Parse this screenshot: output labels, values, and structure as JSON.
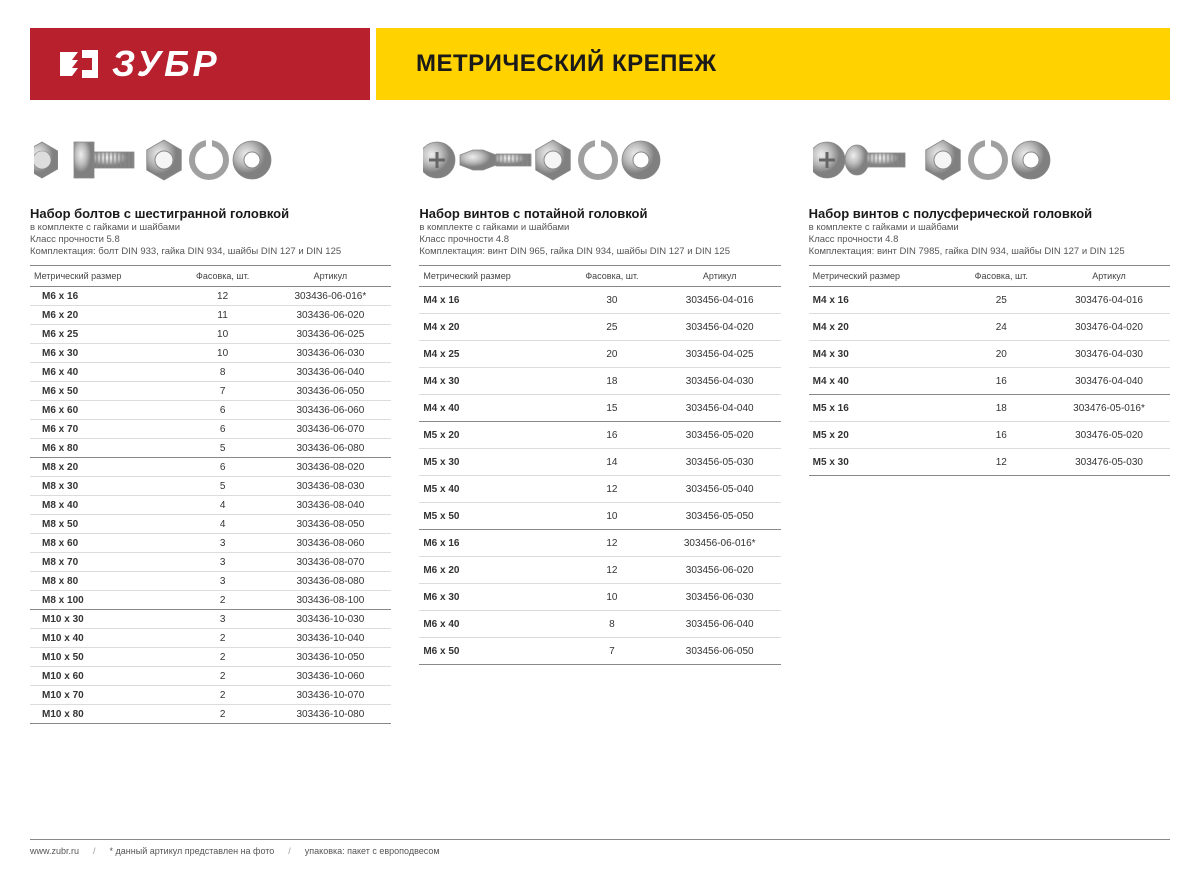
{
  "colors": {
    "brand_red": "#b7202c",
    "accent_yellow": "#ffd200",
    "text_dark": "#1a1a1a",
    "text_body": "#333333",
    "rule_strong": "#888888",
    "rule_light": "#dcdcdc",
    "background": "#ffffff"
  },
  "header": {
    "brand": "ЗУБР",
    "title": "МЕТРИЧЕСКИЙ КРЕПЕЖ"
  },
  "table_headers": {
    "size": "Метрический размер",
    "qty": "Фасовка, шт.",
    "sku": "Артикул"
  },
  "sections": [
    {
      "title": "Набор болтов с шестигранной головкой",
      "subtitle": "в комплекте с гайками и шайбами",
      "strength": "Класс прочности 5.8",
      "composition": "Комплектация: болт DIN 933, гайка DIN 934, шайбы DIN 127 и DIN 125",
      "hardware": "hex",
      "table_class": "table-1",
      "groups": [
        [
          {
            "size": "M6 x 16",
            "qty": "12",
            "sku": "303436-06-016*"
          },
          {
            "size": "M6 x 20",
            "qty": "11",
            "sku": "303436-06-020"
          },
          {
            "size": "M6 x 25",
            "qty": "10",
            "sku": "303436-06-025"
          },
          {
            "size": "M6 x 30",
            "qty": "10",
            "sku": "303436-06-030"
          },
          {
            "size": "M6 x 40",
            "qty": "8",
            "sku": "303436-06-040"
          },
          {
            "size": "M6 x 50",
            "qty": "7",
            "sku": "303436-06-050"
          },
          {
            "size": "M6 x 60",
            "qty": "6",
            "sku": "303436-06-060"
          },
          {
            "size": "M6 x 70",
            "qty": "6",
            "sku": "303436-06-070"
          },
          {
            "size": "M6 x 80",
            "qty": "5",
            "sku": "303436-06-080"
          }
        ],
        [
          {
            "size": "M8 x 20",
            "qty": "6",
            "sku": "303436-08-020"
          },
          {
            "size": "M8 x 30",
            "qty": "5",
            "sku": "303436-08-030"
          },
          {
            "size": "M8 x 40",
            "qty": "4",
            "sku": "303436-08-040"
          },
          {
            "size": "M8 x 50",
            "qty": "4",
            "sku": "303436-08-050"
          },
          {
            "size": "M8 x 60",
            "qty": "3",
            "sku": "303436-08-060"
          },
          {
            "size": "M8 x 70",
            "qty": "3",
            "sku": "303436-08-070"
          },
          {
            "size": "M8 x 80",
            "qty": "3",
            "sku": "303436-08-080"
          },
          {
            "size": "M8 x 100",
            "qty": "2",
            "sku": "303436-08-100"
          }
        ],
        [
          {
            "size": "M10 x 30",
            "qty": "3",
            "sku": "303436-10-030"
          },
          {
            "size": "M10 x 40",
            "qty": "2",
            "sku": "303436-10-040"
          },
          {
            "size": "M10 x 50",
            "qty": "2",
            "sku": "303436-10-050"
          },
          {
            "size": "M10 x 60",
            "qty": "2",
            "sku": "303436-10-060"
          },
          {
            "size": "M10 x 70",
            "qty": "2",
            "sku": "303436-10-070"
          },
          {
            "size": "M10 x 80",
            "qty": "2",
            "sku": "303436-10-080"
          }
        ]
      ]
    },
    {
      "title": "Набор винтов с потайной головкой",
      "subtitle": "в комплекте с гайками и шайбами",
      "strength": "Класс прочности 4.8",
      "composition": "Комплектация: винт DIN 965, гайка DIN 934, шайбы DIN 127 и DIN 125",
      "hardware": "flat",
      "table_class": "table-2",
      "groups": [
        [
          {
            "size": "M4 x 16",
            "qty": "30",
            "sku": "303456-04-016"
          },
          {
            "size": "M4 x 20",
            "qty": "25",
            "sku": "303456-04-020"
          },
          {
            "size": "M4 x 25",
            "qty": "20",
            "sku": "303456-04-025"
          },
          {
            "size": "M4 x 30",
            "qty": "18",
            "sku": "303456-04-030"
          },
          {
            "size": "M4 x 40",
            "qty": "15",
            "sku": "303456-04-040"
          }
        ],
        [
          {
            "size": "M5 x 20",
            "qty": "16",
            "sku": "303456-05-020"
          },
          {
            "size": "M5 x 30",
            "qty": "14",
            "sku": "303456-05-030"
          },
          {
            "size": "M5 x 40",
            "qty": "12",
            "sku": "303456-05-040"
          },
          {
            "size": "M5 x 50",
            "qty": "10",
            "sku": "303456-05-050"
          }
        ],
        [
          {
            "size": "M6 x 16",
            "qty": "12",
            "sku": "303456-06-016*"
          },
          {
            "size": "M6 x 20",
            "qty": "12",
            "sku": "303456-06-020"
          },
          {
            "size": "M6 x 30",
            "qty": "10",
            "sku": "303456-06-030"
          },
          {
            "size": "M6 x 40",
            "qty": "8",
            "sku": "303456-06-040"
          },
          {
            "size": "M6 x 50",
            "qty": "7",
            "sku": "303456-06-050"
          }
        ]
      ]
    },
    {
      "title": "Набор винтов с полусферической головкой",
      "subtitle": "в комплекте с гайками и шайбами",
      "strength": "Класс прочности 4.8",
      "composition": "Комплектация: винт DIN 7985, гайка DIN 934, шайбы DIN 127 и DIN 125",
      "hardware": "pan",
      "table_class": "table-3",
      "groups": [
        [
          {
            "size": "M4 x 16",
            "qty": "25",
            "sku": "303476-04-016"
          },
          {
            "size": "M4 x 20",
            "qty": "24",
            "sku": "303476-04-020"
          },
          {
            "size": "M4 x 30",
            "qty": "20",
            "sku": "303476-04-030"
          },
          {
            "size": "M4 x 40",
            "qty": "16",
            "sku": "303476-04-040"
          }
        ],
        [
          {
            "size": "M5 x 16",
            "qty": "18",
            "sku": "303476-05-016*"
          },
          {
            "size": "M5 x 20",
            "qty": "16",
            "sku": "303476-05-020"
          },
          {
            "size": "M5 x 30",
            "qty": "12",
            "sku": "303476-05-030"
          }
        ]
      ]
    }
  ],
  "footer": {
    "site": "www.zubr.ru",
    "note1": "* данный артикул представлен на фото",
    "note2": "упаковка: пакет с европодвесом"
  }
}
